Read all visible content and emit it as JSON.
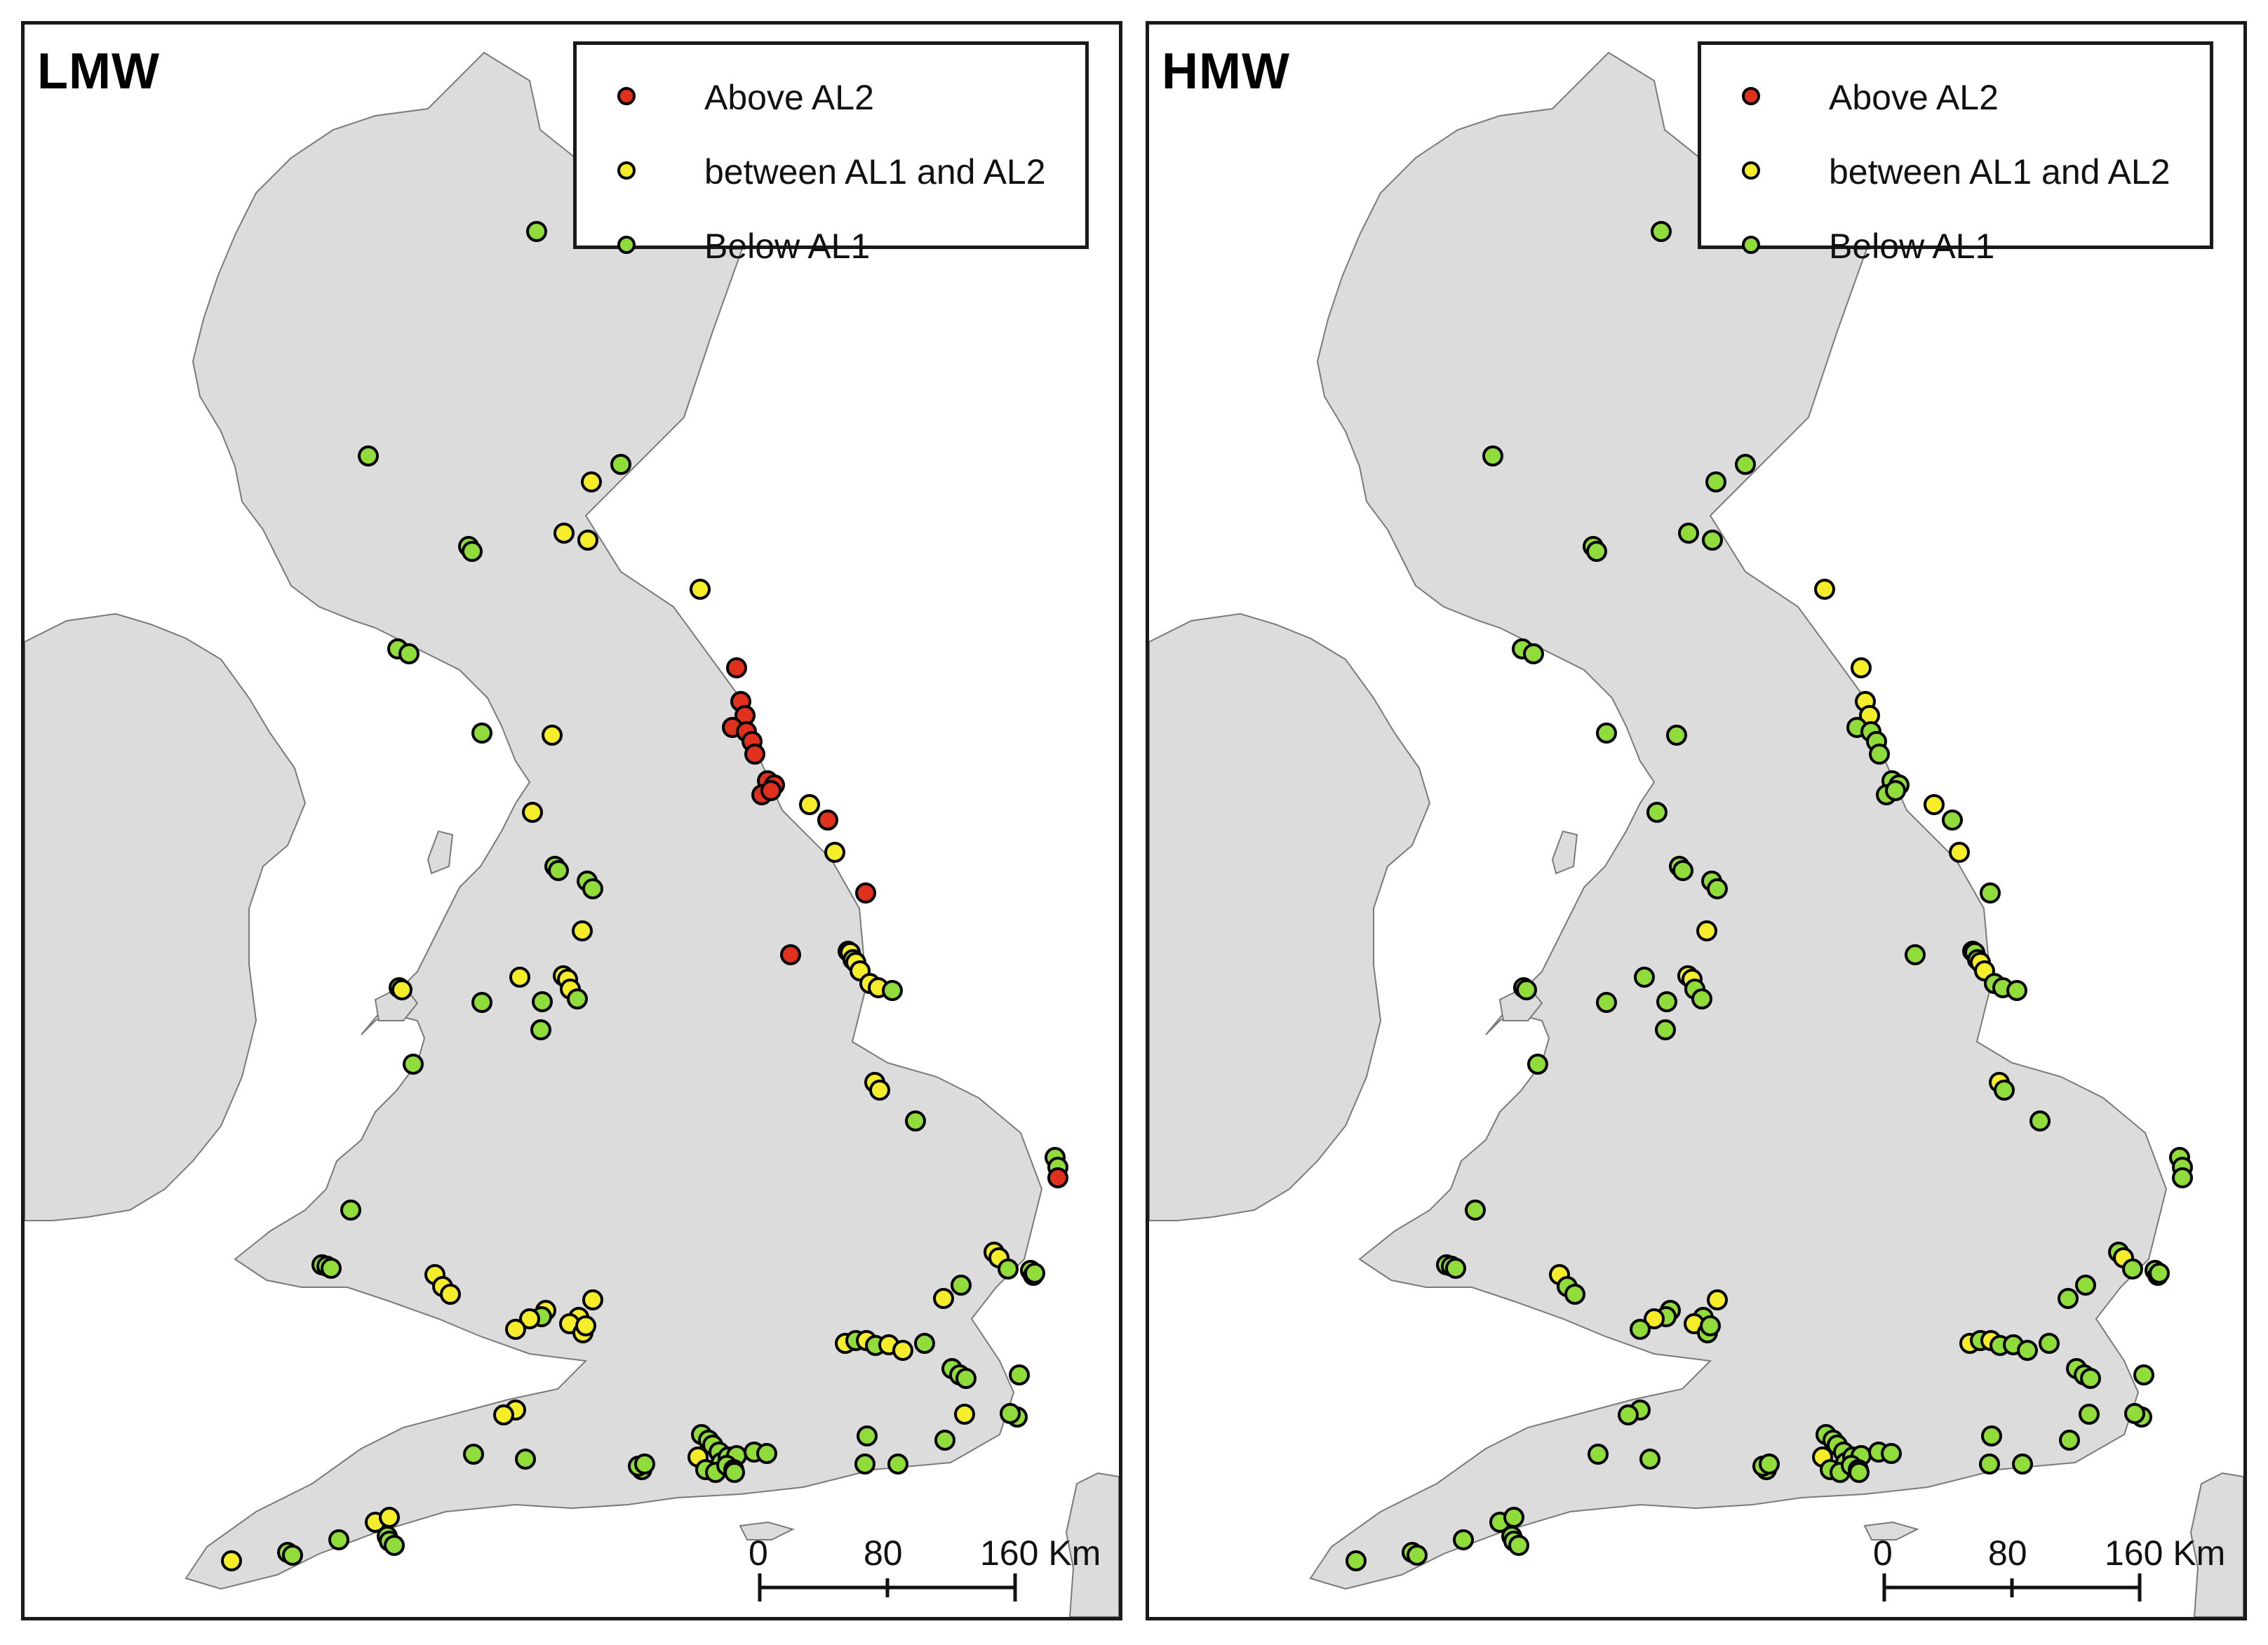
{
  "colors": {
    "land": "#dcdcdc",
    "coast": "#7a7a7a",
    "above_al2": "#e0301e",
    "between_al1_al2": "#f5ec2a",
    "below_al1": "#8fdc3a",
    "marker_outline": "#000000"
  },
  "legend": {
    "items": [
      {
        "label": "Above AL2",
        "color": "#e0301e"
      },
      {
        "label": "between AL1 and AL2",
        "color": "#f5ec2a"
      },
      {
        "label": "Below AL1",
        "color": "#8fdc3a"
      }
    ]
  },
  "scalebar": {
    "labels": [
      "0",
      "80",
      "160 Km"
    ]
  },
  "panels": [
    {
      "id": "left",
      "title": "LMW"
    },
    {
      "id": "right",
      "title": "HMW"
    }
  ]
}
